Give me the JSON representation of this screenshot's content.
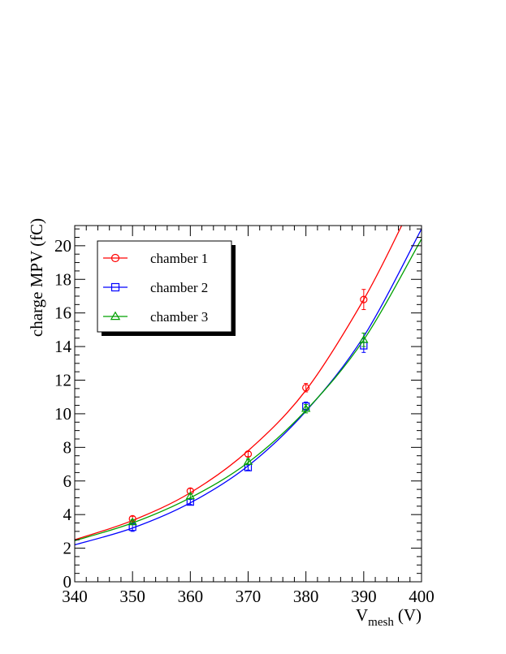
{
  "chart_data": {
    "type": "scatter",
    "xlabel": {
      "main": "V",
      "sub": "mesh",
      "unit": "(V)"
    },
    "ylabel": "charge MPV (fC)",
    "xlim": [
      340,
      400
    ],
    "ylim": [
      0,
      21.2
    ],
    "x_ticks": [
      340,
      350,
      360,
      370,
      380,
      390,
      400
    ],
    "y_ticks": [
      0,
      2,
      4,
      6,
      8,
      10,
      12,
      14,
      16,
      18,
      20
    ],
    "legend_position": "top-left",
    "grid": false,
    "series": [
      {
        "name": "chamber 1",
        "color": "#ff0000",
        "marker": "circle",
        "x": [
          350,
          360,
          370,
          380,
          390
        ],
        "y": [
          3.75,
          5.4,
          7.6,
          11.55,
          16.8
        ],
        "yerr": [
          0.15,
          0.15,
          0.15,
          0.25,
          0.6
        ],
        "fit": {
          "x": [
            340,
            350,
            360,
            370,
            380,
            390,
            397
          ],
          "y": [
            2.5,
            3.65,
            5.3,
            7.8,
            11.4,
            16.8,
            21.5
          ]
        }
      },
      {
        "name": "chamber 2",
        "color": "#0000ff",
        "marker": "square",
        "x": [
          350,
          360,
          370,
          380,
          390
        ],
        "y": [
          3.25,
          4.75,
          6.8,
          10.45,
          14.05
        ],
        "yerr": [
          0.25,
          0.15,
          0.15,
          0.25,
          0.4
        ],
        "fit": {
          "x": [
            340,
            350,
            360,
            370,
            380,
            390,
            400
          ],
          "y": [
            2.2,
            3.2,
            4.7,
            6.9,
            10.15,
            14.6,
            21.0
          ]
        }
      },
      {
        "name": "chamber 3",
        "color": "#00a000",
        "marker": "triangle",
        "x": [
          350,
          360,
          370,
          380,
          390
        ],
        "y": [
          3.55,
          5.1,
          7.15,
          10.3,
          14.4
        ],
        "yerr": [
          0.15,
          0.15,
          0.15,
          0.25,
          0.4
        ],
        "fit": {
          "x": [
            340,
            350,
            360,
            370,
            380,
            390,
            400
          ],
          "y": [
            2.45,
            3.5,
            5.0,
            7.1,
            10.2,
            14.4,
            20.4
          ]
        }
      }
    ]
  }
}
